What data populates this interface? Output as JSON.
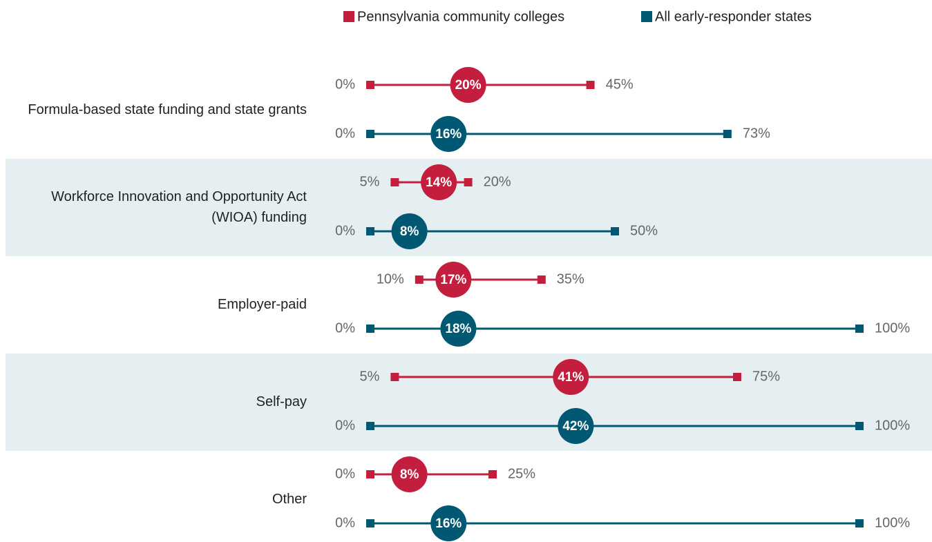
{
  "chart_data": {
    "type": "range",
    "categories": [
      "Formula-based state funding and state grants",
      "Workforce Innovation and Opportunity Act (WIOA) funding",
      "Employer-paid",
      "Self-pay",
      "Other"
    ],
    "xlim": [
      0,
      100
    ],
    "series": [
      {
        "name": "Pennsylvania community colleges",
        "color": "#c41e3f",
        "min": [
          0,
          5,
          10,
          5,
          0
        ],
        "min_labels": [
          "0%",
          "5%",
          "10%",
          "5%",
          "0%"
        ],
        "max": [
          45,
          20,
          35,
          75,
          25
        ],
        "max_labels": [
          "45%",
          "20%",
          "35%",
          "75%",
          "25%"
        ],
        "avg": [
          20,
          14,
          17,
          41,
          8
        ],
        "avg_labels": [
          "20%",
          "14%",
          "17%",
          "41%",
          "8%"
        ]
      },
      {
        "name": "All early-responder states",
        "color": "#005872",
        "min": [
          0,
          0,
          0,
          0,
          0
        ],
        "min_labels": [
          "0%",
          "0%",
          "0%",
          "0%",
          "0%"
        ],
        "max": [
          73,
          50,
          100,
          100,
          100
        ],
        "max_labels": [
          "73%",
          "50%",
          "100%",
          "100%",
          "100%"
        ],
        "avg": [
          16,
          8,
          18,
          42,
          16
        ],
        "avg_labels": [
          "16%",
          "8%",
          "18%",
          "42%",
          "16%"
        ]
      }
    ]
  }
}
